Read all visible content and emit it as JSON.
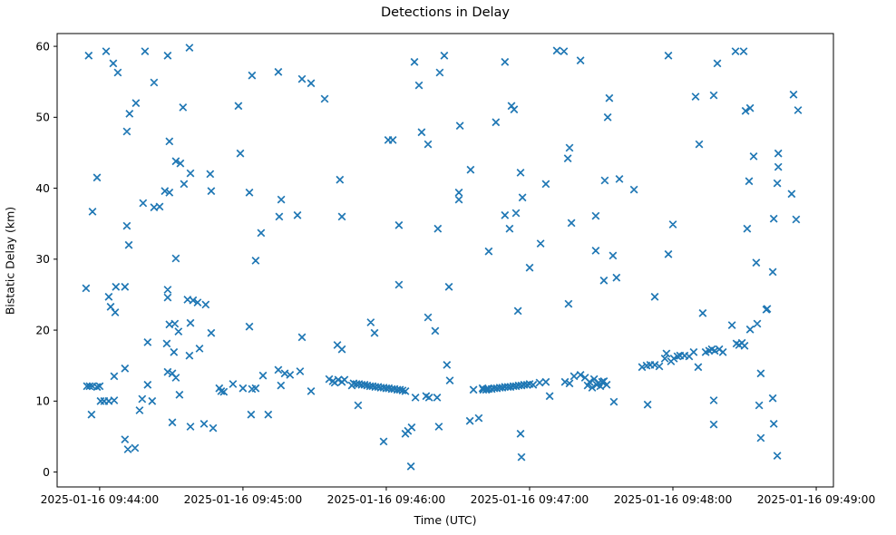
{
  "title": "Detections in Delay",
  "chart_data": {
    "type": "scatter",
    "title": "Detections in Delay",
    "xlabel": "Time (UTC)",
    "ylabel": "Bistatic Delay (km)",
    "marker": "x",
    "marker_color": "#1f77b4",
    "background_color": "#ffffff",
    "grid": false,
    "legend": false,
    "x_axis": {
      "kind": "time",
      "reference": "2025-01-16 09:44:00 UTC",
      "units": "seconds after 2025-01-16 09:44:00",
      "range_sec": [
        -17.8,
        307.2
      ],
      "tick_offsets_sec": [
        0,
        60,
        120,
        180,
        240,
        300
      ],
      "tick_labels": [
        "2025-01-16 09:44:00",
        "2025-01-16 09:45:00",
        "2025-01-16 09:46:00",
        "2025-01-16 09:47:00",
        "2025-01-16 09:48:00",
        "2025-01-16 09:49:00"
      ]
    },
    "y_axis": {
      "range": [
        -2.1,
        61.8
      ],
      "ticks": [
        0,
        10,
        20,
        30,
        40,
        50,
        60
      ],
      "tick_labels": [
        "0",
        "10",
        "20",
        "30",
        "40",
        "50",
        "60"
      ]
    },
    "points": [
      [
        -4.6,
        58.7
      ],
      [
        2.7,
        59.3
      ],
      [
        5.7,
        57.6
      ],
      [
        7.6,
        56.3
      ],
      [
        19.0,
        59.3
      ],
      [
        22.8,
        54.9
      ],
      [
        28.5,
        58.7
      ],
      [
        37.6,
        59.8
      ],
      [
        11.4,
        48.0
      ],
      [
        12.5,
        50.5
      ],
      [
        15.2,
        52.0
      ],
      [
        29.2,
        46.6
      ],
      [
        31.9,
        43.8
      ],
      [
        33.8,
        43.5
      ],
      [
        34.9,
        51.4
      ],
      [
        35.3,
        40.6
      ],
      [
        38.0,
        42.1
      ],
      [
        46.3,
        42.0
      ],
      [
        46.7,
        39.6
      ],
      [
        58.1,
        51.6
      ],
      [
        58.9,
        44.9
      ],
      [
        62.7,
        39.4
      ],
      [
        63.8,
        55.9
      ],
      [
        65.3,
        29.8
      ],
      [
        67.6,
        33.7
      ],
      [
        74.8,
        56.4
      ],
      [
        75.2,
        36.0
      ],
      [
        76.0,
        38.4
      ],
      [
        82.8,
        36.2
      ],
      [
        84.7,
        55.4
      ],
      [
        88.5,
        54.8
      ],
      [
        94.2,
        52.6
      ],
      [
        100.6,
        41.2
      ],
      [
        101.4,
        36.0
      ],
      [
        120.8,
        46.8
      ],
      [
        122.7,
        46.8
      ],
      [
        125.3,
        34.8
      ],
      [
        131.8,
        57.8
      ],
      [
        133.7,
        54.5
      ],
      [
        134.8,
        47.9
      ],
      [
        137.5,
        46.2
      ],
      [
        141.6,
        34.3
      ],
      [
        142.4,
        56.3
      ],
      [
        144.3,
        58.7
      ],
      [
        -1.1,
        41.5
      ],
      [
        -3.0,
        36.7
      ],
      [
        27.3,
        39.6
      ],
      [
        29.2,
        39.4
      ],
      [
        18.2,
        37.9
      ],
      [
        22.8,
        37.3
      ],
      [
        25.1,
        37.4
      ],
      [
        11.4,
        34.7
      ],
      [
        12.2,
        32.0
      ],
      [
        31.9,
        30.1
      ],
      [
        -5.7,
        25.9
      ],
      [
        6.8,
        26.1
      ],
      [
        10.6,
        26.1
      ],
      [
        3.8,
        24.7
      ],
      [
        4.6,
        23.3
      ],
      [
        6.5,
        22.5
      ],
      [
        28.5,
        25.7
      ],
      [
        28.5,
        24.6
      ],
      [
        36.8,
        24.3
      ],
      [
        39.1,
        24.2
      ],
      [
        41.0,
        23.9
      ],
      [
        44.4,
        23.6
      ],
      [
        29.2,
        20.8
      ],
      [
        31.5,
        20.9
      ],
      [
        33.0,
        19.8
      ],
      [
        38.0,
        21.0
      ],
      [
        46.7,
        19.6
      ],
      [
        20.1,
        18.3
      ],
      [
        28.1,
        18.1
      ],
      [
        31.1,
        16.9
      ],
      [
        37.6,
        16.4
      ],
      [
        41.8,
        17.4
      ],
      [
        6.1,
        13.5
      ],
      [
        10.6,
        14.6
      ],
      [
        28.5,
        14.1
      ],
      [
        30.4,
        13.9
      ],
      [
        31.9,
        13.3
      ],
      [
        -5.3,
        12.1
      ],
      [
        -4.2,
        12.1
      ],
      [
        -3.0,
        12.1
      ],
      [
        -1.1,
        12.0
      ],
      [
        0.0,
        12.1
      ],
      [
        20.1,
        12.3
      ],
      [
        0.4,
        10.0
      ],
      [
        1.9,
        10.0
      ],
      [
        3.8,
        10.0
      ],
      [
        6.1,
        10.1
      ],
      [
        17.8,
        10.3
      ],
      [
        22.0,
        10.0
      ],
      [
        16.7,
        8.7
      ],
      [
        33.4,
        10.9
      ],
      [
        -3.4,
        8.1
      ],
      [
        30.4,
        7.0
      ],
      [
        38.0,
        6.4
      ],
      [
        10.6,
        4.6
      ],
      [
        11.8,
        3.2
      ],
      [
        14.8,
        3.4
      ],
      [
        62.7,
        20.5
      ],
      [
        84.7,
        19.0
      ],
      [
        99.5,
        17.9
      ],
      [
        101.4,
        17.3
      ],
      [
        68.4,
        13.6
      ],
      [
        74.8,
        14.4
      ],
      [
        77.5,
        13.9
      ],
      [
        79.7,
        13.7
      ],
      [
        83.9,
        14.2
      ],
      [
        50.1,
        11.8
      ],
      [
        50.9,
        11.4
      ],
      [
        52.0,
        11.3
      ],
      [
        55.8,
        12.4
      ],
      [
        60.0,
        11.8
      ],
      [
        63.8,
        11.7
      ],
      [
        65.3,
        11.8
      ],
      [
        75.9,
        12.2
      ],
      [
        88.5,
        11.4
      ],
      [
        96.1,
        13.1
      ],
      [
        97.6,
        12.8
      ],
      [
        98.4,
        12.6
      ],
      [
        99.9,
        13.0
      ],
      [
        101.4,
        12.7
      ],
      [
        105.6,
        12.2
      ],
      [
        63.4,
        8.1
      ],
      [
        70.6,
        8.1
      ],
      [
        47.5,
        6.2
      ],
      [
        43.7,
        6.8
      ],
      [
        113.5,
        21.1
      ],
      [
        115.1,
        19.6
      ],
      [
        137.5,
        21.8
      ],
      [
        140.5,
        19.9
      ],
      [
        125.3,
        26.4
      ],
      [
        146.2,
        26.1
      ],
      [
        102.5,
        13.0
      ],
      [
        106.3,
        12.5
      ],
      [
        107.5,
        12.4
      ],
      [
        108.6,
        12.4
      ],
      [
        109.7,
        12.3
      ],
      [
        110.9,
        12.3
      ],
      [
        112.0,
        12.2
      ],
      [
        113.2,
        12.1
      ],
      [
        114.3,
        12.1
      ],
      [
        115.4,
        12.0
      ],
      [
        116.6,
        12.0
      ],
      [
        117.7,
        11.9
      ],
      [
        118.9,
        11.9
      ],
      [
        120.0,
        11.8
      ],
      [
        121.1,
        11.8
      ],
      [
        122.3,
        11.7
      ],
      [
        123.4,
        11.7
      ],
      [
        124.6,
        11.6
      ],
      [
        125.7,
        11.6
      ],
      [
        126.8,
        11.5
      ],
      [
        128.0,
        11.4
      ],
      [
        132.2,
        10.5
      ],
      [
        136.7,
        10.7
      ],
      [
        137.9,
        10.5
      ],
      [
        141.3,
        10.5
      ],
      [
        145.4,
        15.1
      ],
      [
        146.6,
        12.9
      ],
      [
        156.5,
        11.6
      ],
      [
        160.3,
        11.8
      ],
      [
        162.2,
        11.7
      ],
      [
        108.2,
        9.4
      ],
      [
        118.9,
        4.3
      ],
      [
        128.0,
        5.4
      ],
      [
        129.1,
        5.8
      ],
      [
        130.6,
        6.3
      ],
      [
        142.0,
        6.4
      ],
      [
        130.3,
        0.8
      ],
      [
        155.0,
        7.2
      ],
      [
        158.7,
        7.6
      ],
      [
        160.6,
        11.6
      ],
      [
        161.8,
        11.6
      ],
      [
        162.9,
        11.7
      ],
      [
        164.1,
        11.7
      ],
      [
        165.2,
        11.8
      ],
      [
        166.3,
        11.8
      ],
      [
        167.5,
        11.9
      ],
      [
        168.6,
        11.9
      ],
      [
        169.7,
        12.0
      ],
      [
        170.9,
        12.0
      ],
      [
        172.0,
        12.0
      ],
      [
        173.2,
        12.1
      ],
      [
        174.3,
        12.1
      ],
      [
        175.4,
        12.2
      ],
      [
        176.6,
        12.2
      ],
      [
        177.7,
        12.3
      ],
      [
        178.9,
        12.3
      ],
      [
        180.0,
        12.4
      ],
      [
        181.5,
        12.3
      ],
      [
        184.2,
        12.6
      ],
      [
        186.8,
        12.7
      ],
      [
        194.8,
        12.7
      ],
      [
        196.7,
        12.5
      ],
      [
        198.6,
        13.5
      ],
      [
        201.3,
        13.7
      ],
      [
        203.2,
        13.3
      ],
      [
        204.3,
        12.2
      ],
      [
        205.1,
        12.7
      ],
      [
        206.2,
        11.9
      ],
      [
        207.0,
        13.1
      ],
      [
        208.1,
        12.3
      ],
      [
        208.9,
        12.6
      ],
      [
        209.6,
        12.1
      ],
      [
        210.4,
        12.7
      ],
      [
        211.1,
        12.8
      ],
      [
        212.3,
        12.3
      ],
      [
        227.1,
        14.8
      ],
      [
        229.0,
        15.0
      ],
      [
        230.5,
        15.1
      ],
      [
        232.4,
        15.1
      ],
      [
        234.3,
        14.9
      ],
      [
        236.6,
        16.0
      ],
      [
        237.3,
        16.7
      ],
      [
        239.2,
        15.6
      ],
      [
        240.4,
        16.0
      ],
      [
        241.9,
        16.3
      ],
      [
        243.0,
        16.4
      ],
      [
        244.9,
        16.4
      ],
      [
        246.8,
        16.3
      ],
      [
        248.7,
        16.9
      ],
      [
        250.6,
        14.8
      ],
      [
        253.7,
        16.9
      ],
      [
        255.2,
        17.1
      ],
      [
        256.3,
        17.3
      ],
      [
        257.5,
        17.1
      ],
      [
        259.4,
        17.3
      ],
      [
        260.9,
        16.9
      ],
      [
        266.6,
        18.1
      ],
      [
        267.7,
        17.9
      ],
      [
        268.9,
        18.2
      ],
      [
        270.0,
        17.8
      ],
      [
        264.7,
        20.7
      ],
      [
        272.3,
        20.1
      ],
      [
        275.3,
        20.9
      ],
      [
        252.5,
        22.4
      ],
      [
        279.1,
        22.9
      ],
      [
        175.1,
        22.7
      ],
      [
        196.3,
        23.7
      ],
      [
        232.4,
        24.7
      ],
      [
        211.1,
        27.0
      ],
      [
        216.4,
        27.4
      ],
      [
        180.0,
        28.8
      ],
      [
        281.8,
        28.2
      ],
      [
        279.5,
        23.0
      ],
      [
        188.4,
        10.7
      ],
      [
        215.3,
        9.9
      ],
      [
        229.4,
        9.5
      ],
      [
        176.2,
        5.4
      ],
      [
        176.6,
        2.1
      ],
      [
        257.1,
        10.1
      ],
      [
        257.1,
        6.7
      ],
      [
        276.8,
        13.9
      ],
      [
        276.1,
        9.4
      ],
      [
        281.8,
        10.4
      ],
      [
        282.2,
        6.8
      ],
      [
        276.8,
        4.8
      ],
      [
        283.7,
        2.3
      ],
      [
        169.7,
        57.8
      ],
      [
        191.4,
        59.4
      ],
      [
        194.4,
        59.3
      ],
      [
        201.3,
        58.0
      ],
      [
        238.1,
        58.7
      ],
      [
        258.6,
        57.6
      ],
      [
        266.2,
        59.3
      ],
      [
        269.6,
        59.3
      ],
      [
        290.5,
        53.2
      ],
      [
        172.4,
        51.6
      ],
      [
        173.5,
        51.1
      ],
      [
        165.9,
        49.3
      ],
      [
        150.8,
        48.8
      ],
      [
        213.4,
        52.7
      ],
      [
        212.7,
        50.0
      ],
      [
        249.5,
        52.9
      ],
      [
        257.1,
        53.1
      ],
      [
        270.4,
        50.9
      ],
      [
        272.3,
        51.3
      ],
      [
        292.4,
        51.0
      ],
      [
        196.7,
        45.7
      ],
      [
        196.0,
        44.2
      ],
      [
        251.0,
        46.2
      ],
      [
        273.8,
        44.5
      ],
      [
        284.1,
        44.9
      ],
      [
        284.1,
        43.0
      ],
      [
        283.7,
        40.7
      ],
      [
        155.3,
        42.6
      ],
      [
        176.2,
        42.2
      ],
      [
        186.8,
        40.6
      ],
      [
        150.4,
        39.4
      ],
      [
        150.4,
        38.4
      ],
      [
        177.0,
        38.7
      ],
      [
        211.5,
        41.1
      ],
      [
        217.6,
        41.3
      ],
      [
        223.7,
        39.8
      ],
      [
        271.9,
        41.0
      ],
      [
        289.7,
        39.2
      ],
      [
        169.7,
        36.2
      ],
      [
        174.3,
        36.5
      ],
      [
        171.6,
        34.3
      ],
      [
        197.5,
        35.1
      ],
      [
        207.7,
        36.1
      ],
      [
        240.0,
        34.9
      ],
      [
        271.1,
        34.3
      ],
      [
        282.2,
        35.7
      ],
      [
        291.6,
        35.6
      ],
      [
        184.6,
        32.2
      ],
      [
        162.9,
        31.1
      ],
      [
        207.7,
        31.2
      ],
      [
        214.9,
        30.5
      ],
      [
        238.1,
        30.7
      ],
      [
        274.9,
        29.5
      ]
    ]
  }
}
